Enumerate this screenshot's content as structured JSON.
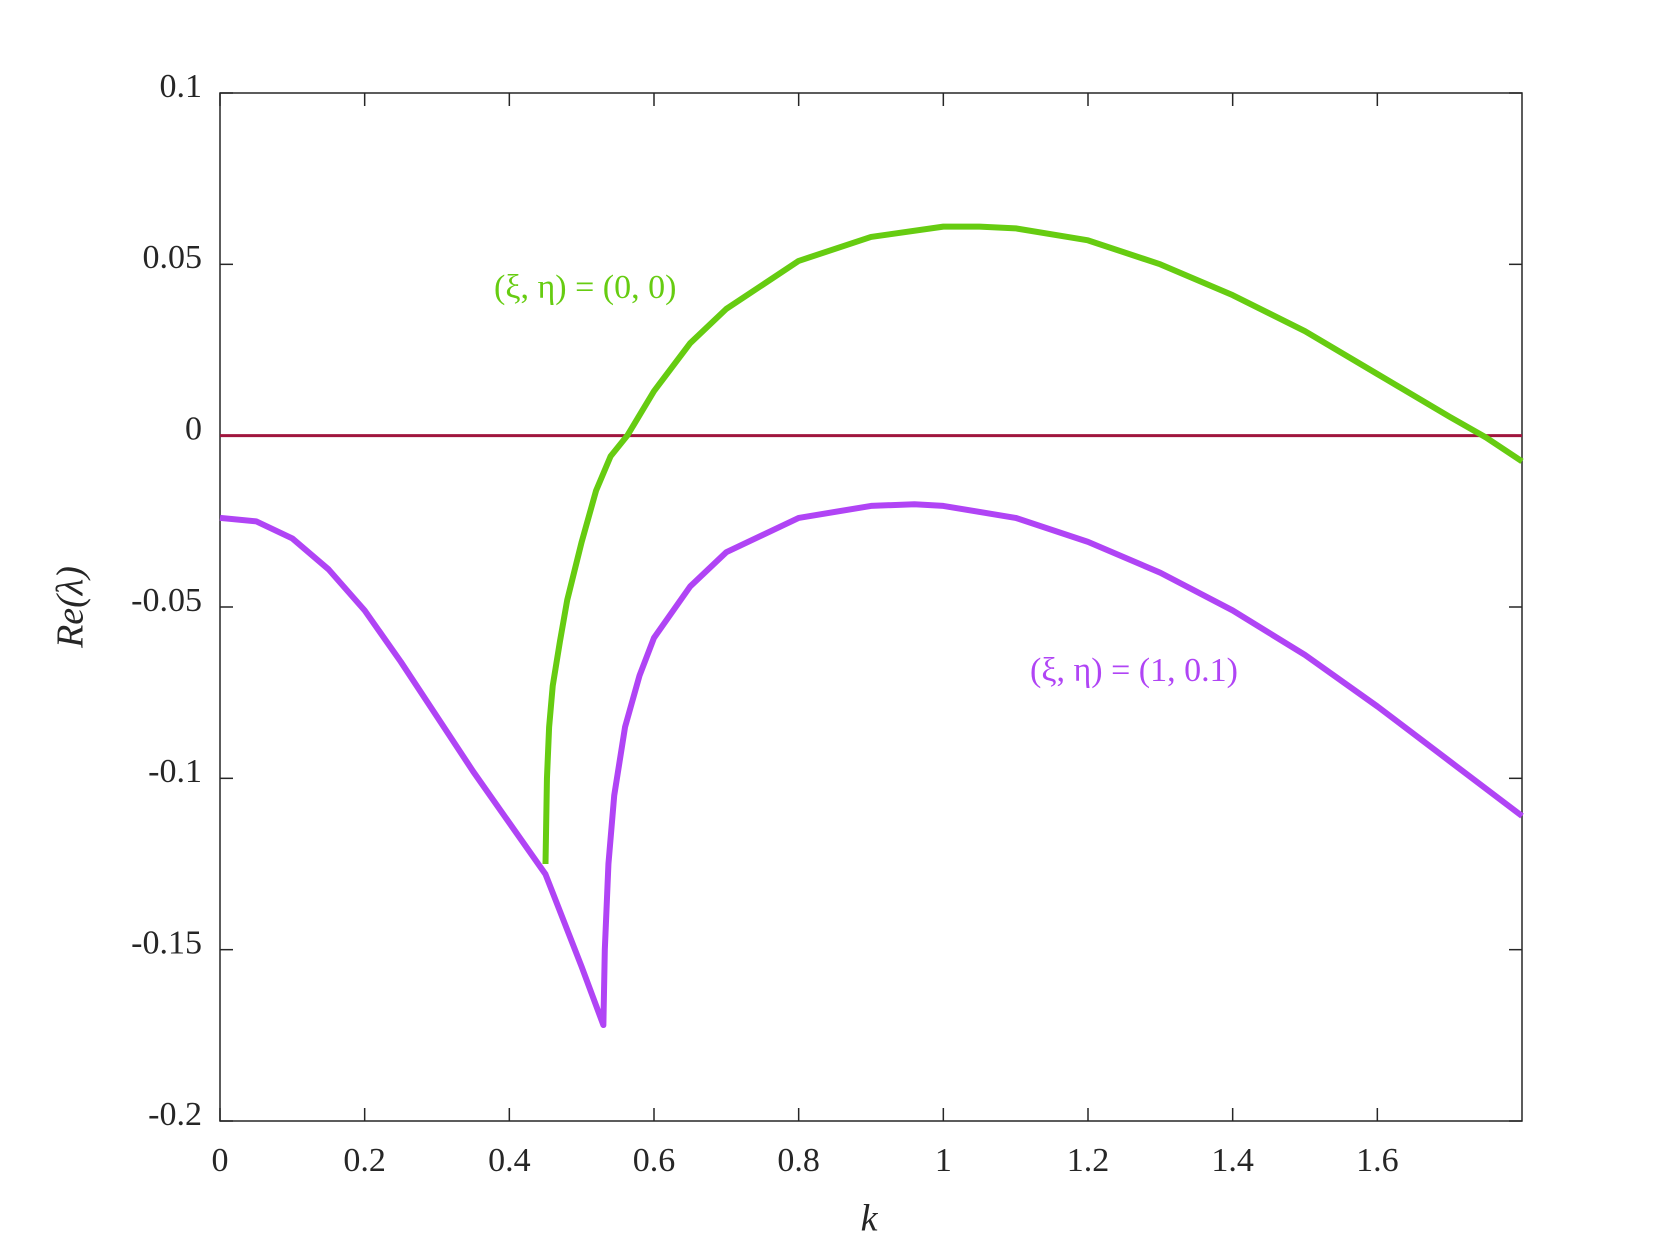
{
  "chart_data": {
    "type": "line",
    "xlabel": "k",
    "ylabel": "Re(λ)",
    "xlim": [
      0,
      1.8
    ],
    "xticks": [
      0,
      0.2,
      0.4,
      0.6,
      0.8,
      1,
      1.2,
      1.4,
      1.6
    ],
    "ylim": [
      -0.2,
      0.1
    ],
    "yticks": [
      -0.2,
      -0.15,
      -0.1,
      -0.05,
      0,
      0.05,
      0.1
    ],
    "grid": false,
    "series": [
      {
        "color": "#a0153e",
        "x": [
          0,
          1.8
        ],
        "values": [
          0,
          0
        ]
      },
      {
        "name": "(ξ, η) = (0, 0)",
        "color": "#66cc11",
        "x": [
          0.45,
          0.452,
          0.455,
          0.46,
          0.47,
          0.48,
          0.5,
          0.52,
          0.54,
          0.563,
          0.6,
          0.65,
          0.7,
          0.8,
          0.9,
          1.0,
          1.05,
          1.1,
          1.2,
          1.3,
          1.4,
          1.5,
          1.6,
          1.7,
          1.75,
          1.8
        ],
        "values": [
          -0.125,
          -0.1,
          -0.085,
          -0.073,
          -0.06,
          -0.048,
          -0.031,
          -0.016,
          -0.006,
          0,
          0.013,
          0.027,
          0.037,
          0.051,
          0.058,
          0.061,
          0.061,
          0.0605,
          0.057,
          0.05,
          0.041,
          0.0305,
          0.018,
          0.0055,
          -0.0005,
          -0.0075
        ]
      },
      {
        "name": "(ξ, η) = (1, 0.1)",
        "color": "#b044f5",
        "x": [
          0,
          0.05,
          0.1,
          0.15,
          0.2,
          0.25,
          0.3,
          0.35,
          0.4,
          0.45,
          0.5,
          0.53,
          0.532,
          0.537,
          0.545,
          0.56,
          0.58,
          0.6,
          0.65,
          0.7,
          0.8,
          0.9,
          0.96,
          1.0,
          1.1,
          1.2,
          1.3,
          1.4,
          1.5,
          1.6,
          1.7,
          1.8
        ],
        "values": [
          -0.024,
          -0.025,
          -0.03,
          -0.039,
          -0.051,
          -0.066,
          -0.082,
          -0.098,
          -0.113,
          -0.128,
          -0.155,
          -0.172,
          -0.15,
          -0.125,
          -0.105,
          -0.085,
          -0.07,
          -0.059,
          -0.044,
          -0.034,
          -0.024,
          -0.0205,
          -0.02,
          -0.0205,
          -0.024,
          -0.031,
          -0.04,
          -0.051,
          -0.064,
          -0.079,
          -0.095,
          -0.111
        ]
      }
    ]
  }
}
